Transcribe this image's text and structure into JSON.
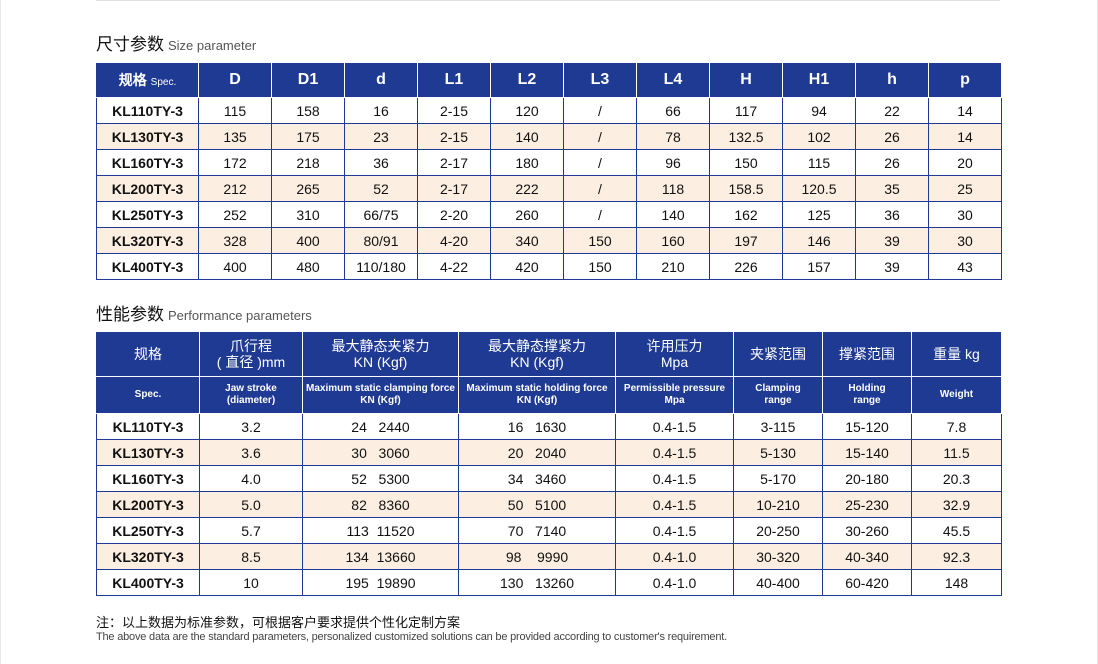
{
  "size_section": {
    "title_cn": "尺寸参数",
    "title_en": "Size parameter",
    "header_spec_cn": "规格",
    "header_spec_en": "Spec.",
    "columns": [
      "D",
      "D1",
      "d",
      "L1",
      "L2",
      "L3",
      "L4",
      "H",
      "H1",
      "h",
      "p"
    ],
    "rows": [
      [
        "KL110TY-3",
        "115",
        "158",
        "16",
        "2-15",
        "120",
        "/",
        "66",
        "117",
        "94",
        "22",
        "14"
      ],
      [
        "KL130TY-3",
        "135",
        "175",
        "23",
        "2-15",
        "140",
        "/",
        "78",
        "132.5",
        "102",
        "26",
        "14"
      ],
      [
        "KL160TY-3",
        "172",
        "218",
        "36",
        "2-17",
        "180",
        "/",
        "96",
        "150",
        "115",
        "26",
        "20"
      ],
      [
        "KL200TY-3",
        "212",
        "265",
        "52",
        "2-17",
        "222",
        "/",
        "118",
        "158.5",
        "120.5",
        "35",
        "25"
      ],
      [
        "KL250TY-3",
        "252",
        "310",
        "66/75",
        "2-20",
        "260",
        "/",
        "140",
        "162",
        "125",
        "36",
        "30"
      ],
      [
        "KL320TY-3",
        "328",
        "400",
        "80/91",
        "4-20",
        "340",
        "150",
        "160",
        "197",
        "146",
        "39",
        "30"
      ],
      [
        "KL400TY-3",
        "400",
        "480",
        "110/180",
        "4-22",
        "420",
        "150",
        "210",
        "226",
        "157",
        "39",
        "43"
      ]
    ]
  },
  "perf_section": {
    "title_cn": "性能参数",
    "title_en": "Performance parameters",
    "headers_cn": [
      [
        "规格"
      ],
      [
        "爪行程",
        "( 直径 )mm"
      ],
      [
        "最大静态夹紧力",
        "KN (Kgf)"
      ],
      [
        "最大静态撑紧力",
        "KN (Kgf)"
      ],
      [
        "许用压力",
        "Mpa"
      ],
      [
        "夹紧范围"
      ],
      [
        "撑紧范围"
      ],
      [
        "重量 kg"
      ]
    ],
    "headers_en": [
      [
        "Spec."
      ],
      [
        "Jaw stroke",
        "(diameter)"
      ],
      [
        "Maximum static clamping force",
        "KN (Kgf)"
      ],
      [
        "Maximum static holding force",
        "KN (Kgf)"
      ],
      [
        "Permissible pressure",
        "Mpa"
      ],
      [
        "Clamping",
        "range"
      ],
      [
        "Holding",
        "range"
      ],
      [
        "Weight"
      ]
    ],
    "rows": [
      [
        "KL110TY-3",
        "3.2",
        "24   2440",
        "16   1630",
        "0.4-1.5",
        "3-115",
        "15-120",
        "7.8"
      ],
      [
        "KL130TY-3",
        "3.6",
        "30   3060",
        "20   2040",
        "0.4-1.5",
        "5-130",
        "15-140",
        "11.5"
      ],
      [
        "KL160TY-3",
        "4.0",
        "52   5300",
        "34   3460",
        "0.4-1.5",
        "5-170",
        "20-180",
        "20.3"
      ],
      [
        "KL200TY-3",
        "5.0",
        "82   8360",
        "50   5100",
        "0.4-1.5",
        "10-210",
        "25-230",
        "32.9"
      ],
      [
        "KL250TY-3",
        "5.7",
        "113  11520",
        "70   7140",
        "0.4-1.5",
        "20-250",
        "30-260",
        "45.5"
      ],
      [
        "KL320TY-3",
        "8.5",
        "134  13660",
        "98    9990",
        "0.4-1.0",
        "30-320",
        "40-340",
        "92.3"
      ],
      [
        "KL400TY-3",
        "10",
        "195  19890",
        "130   13260",
        "0.4-1.0",
        "40-400",
        "60-420",
        "148"
      ]
    ]
  },
  "note": {
    "cn": "注：以上数据为标准参数，可根据客户要求提供个性化定制方案",
    "en": "The above data are the standard parameters, personalized customized solutions can be provided according to customer's requirement."
  },
  "colors": {
    "header_bg": "#1f3a93",
    "stripe_bg": "#fcefe1",
    "border": "#1f3a93"
  }
}
